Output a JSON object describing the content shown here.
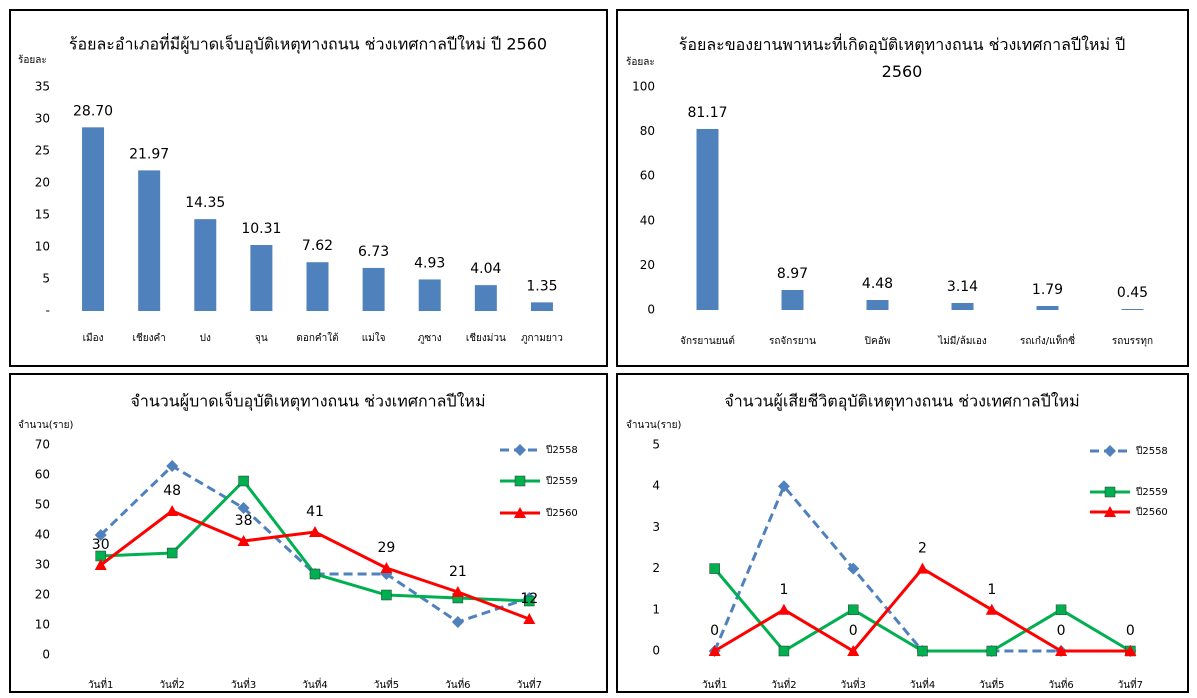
{
  "chart_data": [
    {
      "type": "bar",
      "title": "ร้อยละอำเภอที่มีผู้บาดเจ็บอุบัติเหตุทางถนน ช่วงเทศกาลปีใหม่ ปี 2560",
      "ylabel": "ร้อยละ",
      "categories": [
        "เมือง",
        "เชียงคำ",
        "ปง",
        "จุน",
        "ดอกคำใต้",
        "แม่ใจ",
        "ภูซาง",
        "เชียงม่วน",
        "ภูกามยาว"
      ],
      "values": [
        28.7,
        21.97,
        14.35,
        10.31,
        7.62,
        6.73,
        4.93,
        4.04,
        1.35
      ],
      "value_labels": [
        "28.70",
        "21.97",
        "14.35",
        "10.31",
        "7.62",
        "6.73",
        "4.93",
        "4.04",
        "1.35"
      ],
      "color": "#4f81bd",
      "ylim": [
        0,
        35
      ],
      "yticks": [
        {
          "value": 0,
          "label": "-"
        },
        5,
        10,
        15,
        20,
        25,
        30,
        35
      ]
    },
    {
      "type": "bar",
      "title": "ร้อยละของยานพาหนะที่เกิดอุบัติเหตุทางถนน ช่วงเทศกาลปีใหม่ ปี 2560",
      "ylabel": "ร้อยละ",
      "categories": [
        "จักรยานยนต์",
        "รถจักรยาน",
        "ปิคอัพ",
        "ไม่มี/ล้มเอง",
        "รถเก๋ง/แท็กซี่",
        "รถบรรทุก"
      ],
      "values": [
        81.17,
        8.97,
        4.48,
        3.14,
        1.79,
        0.45
      ],
      "color": "#4f81bd",
      "ylim": [
        0,
        100
      ],
      "yticks": [
        0,
        20,
        40,
        60,
        80,
        100
      ]
    },
    {
      "type": "line",
      "title": "จำนวนผู้บาดเจ็บอุบัติเหตุทางถนน ช่วงเทศกาลปีใหม่",
      "ylabel": "จำนวน(ราย)",
      "categories": [
        "วันที่1",
        "วันที่2",
        "วันที่3",
        "วันที่4",
        "วันที่5",
        "วันที่6",
        "วันที่7"
      ],
      "series": [
        {
          "name": "ปี2558",
          "color": "#4f81bd",
          "style": "dashed",
          "marker": "diamond",
          "values": [
            40,
            63,
            49,
            27,
            27,
            11,
            19
          ]
        },
        {
          "name": "ปี2559",
          "color": "#00b050",
          "marker": "square",
          "values": [
            33,
            34,
            58,
            27,
            20,
            19,
            18
          ]
        },
        {
          "name": "ปี2560",
          "color": "#ff0000",
          "marker": "triangle",
          "data_labels": true,
          "values": [
            30,
            48,
            38,
            41,
            29,
            21,
            12
          ]
        }
      ],
      "ylim": [
        0,
        70
      ],
      "yticks": [
        0,
        10,
        20,
        30,
        40,
        50,
        60,
        70
      ]
    },
    {
      "type": "line",
      "title": "จำนวนผู้เสียชีวิตอุบัติเหตุทางถนน ช่วงเทศกาลปีใหม่",
      "ylabel": "จำนวน(ราย)",
      "categories": [
        "วันที่1",
        "วันที่2",
        "วันที่3",
        "วันที่4",
        "วันที่5",
        "วันที่6",
        "วันที่7"
      ],
      "series": [
        {
          "name": "ปี2558",
          "color": "#4f81bd",
          "style": "dashed",
          "marker": "diamond",
          "values": [
            0,
            4,
            2,
            0,
            0,
            0,
            0
          ]
        },
        {
          "name": "ปี2559",
          "color": "#00b050",
          "marker": "square",
          "values": [
            2,
            0,
            1,
            0,
            0,
            1,
            0
          ]
        },
        {
          "name": "ปี2560",
          "color": "#ff0000",
          "marker": "triangle",
          "data_labels": true,
          "values": [
            0,
            1,
            0,
            2,
            1,
            0,
            0
          ]
        }
      ],
      "ylim": [
        0,
        5
      ],
      "yticks": [
        0,
        1,
        2,
        3,
        4,
        5
      ]
    }
  ]
}
